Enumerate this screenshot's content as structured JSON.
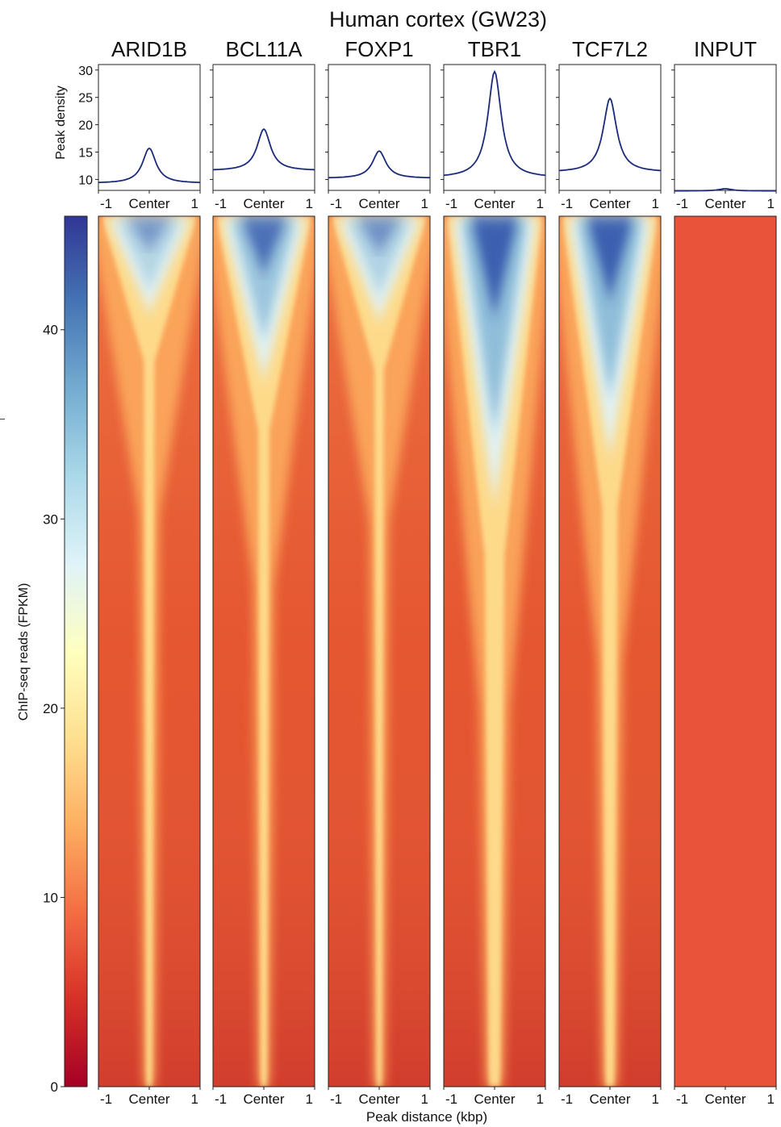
{
  "chart_data": {
    "type": "heatmap",
    "title": "Human cortex (GW23)",
    "profile": {
      "ylabel": "Peak density",
      "ylim": [
        8,
        31
      ],
      "yticks": [
        10,
        15,
        20,
        25,
        30
      ],
      "xticks": [
        "-1",
        "Center",
        "1"
      ],
      "series": [
        {
          "name": "ARID1B",
          "baseline": 9.3,
          "peak": 15.7
        },
        {
          "name": "BCL11A",
          "baseline": 11.6,
          "peak": 19.2
        },
        {
          "name": "FOXP1",
          "baseline": 10.2,
          "peak": 15.2
        },
        {
          "name": "TBR1",
          "baseline": 10.3,
          "peak": 29.7
        },
        {
          "name": "TCF7L2",
          "baseline": 11.3,
          "peak": 24.8
        },
        {
          "name": "INPUT",
          "baseline": 7.9,
          "peak": 8.3
        }
      ]
    },
    "heatmap": {
      "xlabel": "Peak distance (kbp)",
      "xticks": [
        "-1",
        "Center",
        "1"
      ],
      "colorbar": {
        "label": "ChIP-seq reads (FPKM)",
        "ticks": [
          0,
          10,
          20,
          30,
          40
        ],
        "range": [
          0,
          46
        ],
        "colors": [
          "#a50026",
          "#d73027",
          "#f46d43",
          "#fdae61",
          "#fee090",
          "#ffffbf",
          "#e0f3f8",
          "#abd9e9",
          "#74add1",
          "#4575b4",
          "#313695"
        ]
      },
      "background": "#e4532f",
      "input_color": "#e8543a"
    }
  }
}
